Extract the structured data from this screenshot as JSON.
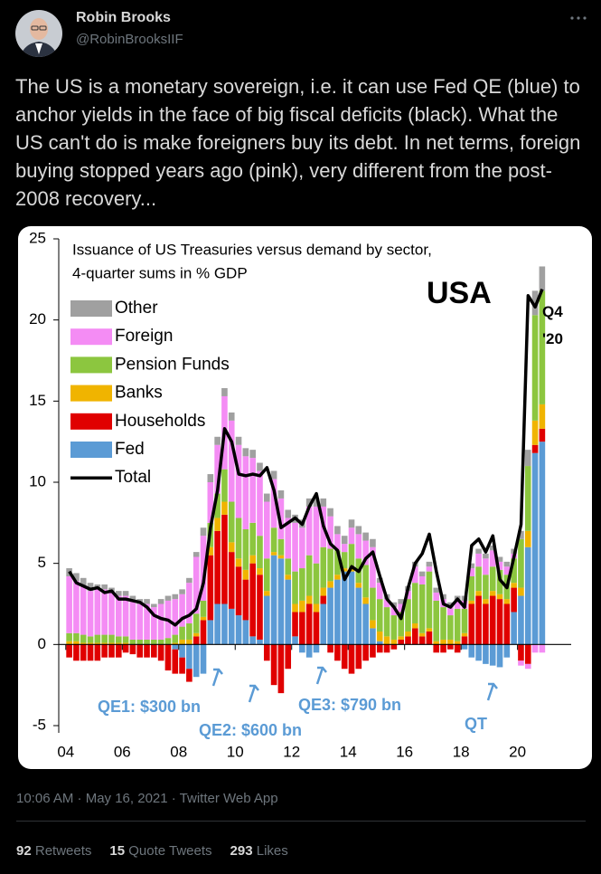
{
  "user": {
    "name": "Robin Brooks",
    "handle": "@RobinBrooksIIF"
  },
  "text": "The US is a monetary sovereign, i.e. it can use Fed QE (blue) to anchor yields in the face of big fiscal deficits (black). What the US can't do is make foreigners buy its debt. In net terms, foreign buying stopped years ago (pink), very different from the post-2008 recovery...",
  "chart_data": {
    "type": "bar",
    "title": "Issuance of US Treasuries versus demand by sector,",
    "subtitle": "4-quarter sums in % GDP",
    "label": "USA",
    "end_label": "Q4 '20",
    "annotations": [
      "QE1: $300 bn",
      "QE2: $600 bn",
      "QE3: $790 bn",
      "QT"
    ],
    "stacked": true,
    "x": [
      2004,
      2004.25,
      2004.5,
      2004.75,
      2005,
      2005.25,
      2005.5,
      2005.75,
      2006,
      2006.25,
      2006.5,
      2006.75,
      2007,
      2007.25,
      2007.5,
      2007.75,
      2008,
      2008.25,
      2008.5,
      2008.75,
      2009,
      2009.25,
      2009.5,
      2009.75,
      2010,
      2010.25,
      2010.5,
      2010.75,
      2011,
      2011.25,
      2011.5,
      2011.75,
      2012,
      2012.25,
      2012.5,
      2012.75,
      2013,
      2013.25,
      2013.5,
      2013.75,
      2014,
      2014.25,
      2014.5,
      2014.75,
      2015,
      2015.25,
      2015.5,
      2015.75,
      2016,
      2016.25,
      2016.5,
      2016.75,
      2017,
      2017.25,
      2017.5,
      2017.75,
      2018,
      2018.25,
      2018.5,
      2018.75,
      2019,
      2019.25,
      2019.5,
      2019.75,
      2020,
      2020.25,
      2020.5,
      2020.75
    ],
    "series": [
      {
        "name": "Fed",
        "color": "#5b9bd5",
        "values": [
          0,
          0,
          0,
          0,
          0,
          0,
          0,
          0,
          0,
          0,
          0,
          0,
          0,
          0,
          0,
          -0.3,
          -0.8,
          -1.5,
          -2.0,
          -1.8,
          1.5,
          2.5,
          2.5,
          2.2,
          1.8,
          1.5,
          0.5,
          0.3,
          3.0,
          5.5,
          5.3,
          4.0,
          0.5,
          -0.5,
          -0.8,
          -0.5,
          2.5,
          3.5,
          4.0,
          4.5,
          4.5,
          3.5,
          2.5,
          1.0,
          0.2,
          0,
          0,
          0,
          0,
          0,
          0,
          0,
          0,
          0,
          0,
          0,
          -0.3,
          -0.8,
          -1.0,
          -1.2,
          -1.3,
          -1.4,
          -0.8,
          2.0,
          3.0,
          6.0,
          11.8,
          12.5
        ]
      },
      {
        "name": "Households",
        "color": "#e00000",
        "values": [
          -0.8,
          -1.0,
          -1.0,
          -1.0,
          -1.0,
          -0.8,
          -0.8,
          -0.8,
          -0.5,
          -0.6,
          -0.8,
          -0.8,
          -0.8,
          -1.0,
          -1.6,
          -1.5,
          -1.0,
          -0.8,
          0.5,
          1.5,
          4.0,
          4.5,
          5.5,
          3.5,
          3.0,
          2.5,
          4.5,
          4.0,
          -1.0,
          -2.5,
          -3.0,
          -1.5,
          1.5,
          2.0,
          2.5,
          2.0,
          0.5,
          -0.5,
          -1.0,
          -1.5,
          -1.8,
          -1.5,
          -1.0,
          -0.8,
          -0.5,
          -0.5,
          -0.3,
          0.3,
          0.5,
          1.0,
          0.5,
          0.8,
          -0.5,
          -0.5,
          -0.3,
          -0.5,
          0.5,
          2.5,
          3.0,
          2.5,
          3.0,
          2.8,
          2.5,
          1.5,
          -1.0,
          -1.2,
          0.5,
          0.8
        ]
      },
      {
        "name": "Banks",
        "color": "#f0b400",
        "values": [
          0.2,
          0.2,
          0.1,
          0.1,
          0.1,
          0.1,
          0.1,
          0.1,
          0.1,
          0,
          0,
          0,
          0,
          0,
          0,
          0.1,
          0.3,
          0.3,
          0.2,
          0.2,
          0.5,
          0.8,
          0.8,
          0.6,
          0.5,
          0.6,
          0.5,
          0.4,
          0.3,
          0.2,
          0.2,
          0.3,
          0.5,
          0.7,
          0.5,
          0.5,
          0.5,
          0.4,
          0.3,
          0.2,
          0.2,
          0.3,
          0.4,
          0.5,
          0.6,
          0.5,
          0.3,
          0.2,
          0.3,
          0.3,
          0.2,
          0.2,
          0.2,
          0.3,
          0.3,
          0.2,
          0.2,
          0.2,
          0.3,
          0.3,
          0.3,
          0.3,
          0.3,
          0.3,
          0.5,
          1.0,
          1.5,
          1.5
        ]
      },
      {
        "name": "Pension Funds",
        "color": "#8cc63f",
        "values": [
          0.5,
          0.5,
          0.5,
          0.4,
          0.5,
          0.5,
          0.5,
          0.4,
          0.4,
          0.3,
          0.3,
          0.3,
          0.3,
          0.3,
          0.4,
          0.5,
          0.8,
          1.0,
          1.2,
          1.0,
          1.5,
          1.5,
          2.0,
          2.5,
          2.5,
          2.5,
          2.0,
          2.0,
          2.0,
          1.5,
          1.0,
          1.0,
          2.0,
          2.0,
          2.5,
          2.5,
          2.5,
          2.0,
          1.5,
          1.0,
          1.5,
          1.5,
          2.0,
          2.0,
          2.0,
          1.8,
          1.5,
          1.5,
          2.0,
          2.5,
          3.0,
          3.5,
          2.5,
          2.0,
          1.5,
          2.0,
          1.5,
          1.5,
          1.5,
          1.5,
          1.5,
          1.5,
          1.5,
          1.5,
          3.0,
          4.0,
          6.5,
          7.0
        ]
      },
      {
        "name": "Foreign",
        "color": "#f48cf4",
        "values": [
          3.5,
          3.2,
          3.0,
          2.8,
          2.8,
          2.8,
          2.6,
          2.5,
          2.5,
          2.4,
          2.2,
          2.2,
          2.0,
          2.2,
          2.3,
          2.2,
          2.0,
          2.5,
          3.5,
          4.0,
          2.5,
          3.0,
          4.5,
          5.0,
          4.5,
          4.5,
          4.0,
          4.0,
          3.5,
          3.0,
          2.5,
          2.5,
          3.0,
          2.5,
          3.0,
          3.5,
          2.5,
          2.0,
          1.0,
          0.5,
          1.0,
          1.5,
          1.5,
          2.5,
          1.0,
          0.5,
          0.5,
          0.5,
          0.5,
          1.0,
          0.5,
          0.3,
          0.5,
          0.5,
          0.5,
          0.5,
          0.5,
          0.5,
          0.8,
          1.0,
          1.0,
          0.5,
          0.5,
          0.3,
          -0.3,
          -0.3,
          -0.5,
          -0.5
        ]
      },
      {
        "name": "Other",
        "color": "#a0a0a0",
        "values": [
          0.5,
          0.5,
          0.5,
          0.5,
          0.3,
          0.3,
          0.3,
          0.3,
          0.3,
          0.3,
          0.3,
          0.3,
          0.2,
          0.3,
          0.3,
          0.3,
          0.3,
          0.3,
          0.3,
          0.5,
          0.5,
          0.5,
          0.5,
          0.5,
          0.5,
          0.5,
          0.5,
          0.5,
          0.5,
          0.5,
          0.5,
          0.5,
          0.5,
          0.5,
          0.5,
          0.5,
          0.5,
          0.5,
          0.5,
          0.5,
          0.5,
          0.5,
          0.5,
          0.5,
          0.3,
          0.3,
          0.3,
          0.3,
          0.3,
          0.3,
          0.3,
          0.3,
          0.3,
          0.3,
          0.3,
          0.3,
          0.3,
          0.3,
          0.3,
          0.3,
          0.3,
          0.3,
          0.3,
          0.3,
          0.5,
          1.0,
          1.5,
          1.5
        ]
      },
      {
        "name": "Total",
        "color": "#000000",
        "type": "line",
        "values": [
          4.5,
          3.8,
          3.6,
          3.4,
          3.5,
          3.2,
          3.3,
          2.8,
          2.8,
          2.7,
          2.6,
          2.3,
          1.8,
          1.6,
          1.5,
          1.2,
          1.6,
          1.8,
          2.2,
          3.8,
          7.2,
          9.5,
          13.3,
          12.5,
          10.5,
          10.4,
          10.5,
          10.4,
          10.9,
          9.5,
          7.2,
          7.5,
          7.8,
          7.4,
          8.5,
          9.3,
          7.3,
          6.2,
          5.8,
          4.0,
          4.8,
          4.5,
          5.3,
          5.7,
          4.2,
          2.8,
          2.3,
          1.6,
          3.5,
          5.0,
          5.6,
          6.8,
          4.5,
          2.5,
          2.3,
          2.8,
          2.3,
          6.1,
          6.5,
          5.7,
          6.7,
          4.0,
          3.5,
          5.4,
          7.4,
          21.5,
          20.8,
          21.9
        ]
      }
    ],
    "xlim": [
      2003.75,
      2021.9
    ],
    "xticks": [
      {
        "value": 2004,
        "label": "04"
      },
      {
        "value": 2006,
        "label": "06"
      },
      {
        "value": 2008,
        "label": "08"
      },
      {
        "value": 2010,
        "label": "10"
      },
      {
        "value": 2012,
        "label": "12"
      },
      {
        "value": 2014,
        "label": "14"
      },
      {
        "value": 2016,
        "label": "16"
      },
      {
        "value": 2018,
        "label": "18"
      },
      {
        "value": 2020,
        "label": "20"
      }
    ],
    "ylim": [
      -5,
      25
    ],
    "yticks": [
      -5,
      0,
      5,
      10,
      15,
      20,
      25
    ],
    "grid": false,
    "legend": "top-left"
  },
  "timestamp": "10:06 AM · May 16, 2021 · Twitter Web App",
  "stats": [
    {
      "count": 92,
      "label": "Retweets"
    },
    {
      "count": 15,
      "label": "Quote Tweets"
    },
    {
      "count": 293,
      "label": "Likes"
    }
  ]
}
